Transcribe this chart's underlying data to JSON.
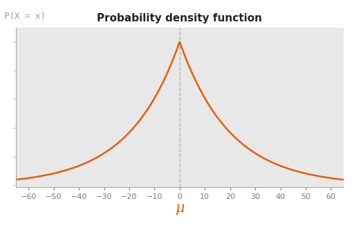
{
  "title": "Probability density function",
  "ylabel": "P(X = x)",
  "xlabel": "μ",
  "mu": 0,
  "b": 20,
  "x_min": -65,
  "x_max": 65,
  "x_ticks": [
    -60,
    -50,
    -40,
    -30,
    -20,
    -10,
    0,
    10,
    20,
    30,
    40,
    50,
    60
  ],
  "line_color": "#e85d04",
  "dashed_line_color": "#b0b0b0",
  "background_color": "#e8e8e8",
  "fig_background_color": "#ffffff",
  "title_fontsize": 11,
  "ylabel_fontsize": 9,
  "xlabel_fontsize": 15,
  "tick_fontsize": 8,
  "xlabel_color": "#e85d04",
  "ylabel_color": "#999999",
  "tick_color": "#777777",
  "spine_color": "#aaaaaa"
}
